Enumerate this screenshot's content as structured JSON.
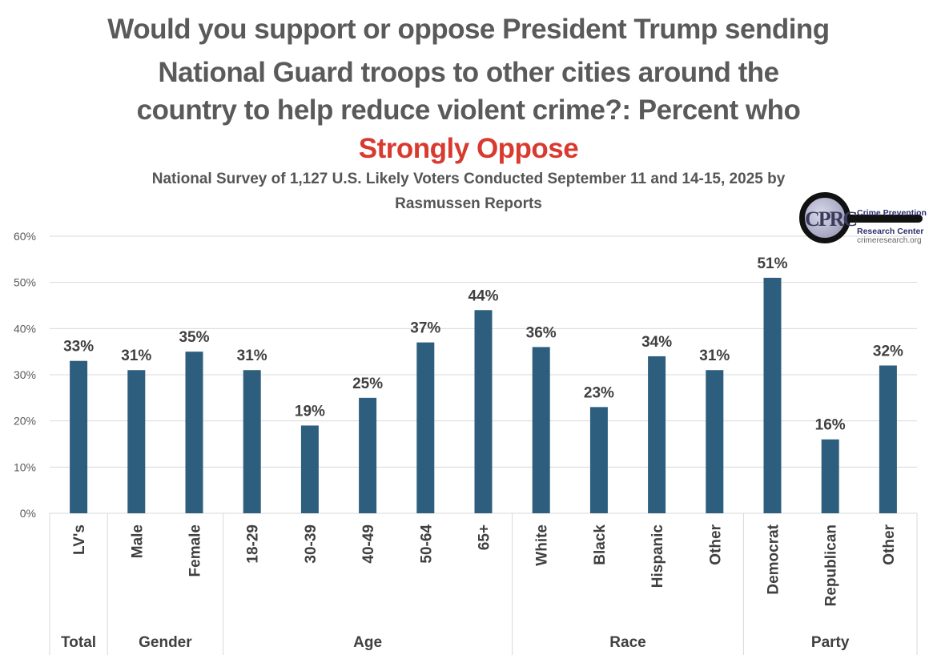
{
  "chart_data": {
    "type": "bar",
    "title_lines": [
      "Would you support or oppose President Trump sending",
      "National Guard troops to other cities around the",
      "country to help reduce violent crime?: Percent who"
    ],
    "title_highlight": "Strongly Oppose",
    "subtitle_lines": [
      "National Survey of 1,127 U.S. Likely Voters Conducted September 11 and 14-15, 2025 by",
      "Rasmussen Reports"
    ],
    "categories": [
      "LV's",
      "Male",
      "Female",
      "18-29",
      "30-39",
      "40-49",
      "50-64",
      "65+",
      "White",
      "Black",
      "Hispanic",
      "Other",
      "Democrat",
      "Republican",
      "Other"
    ],
    "values": [
      33,
      31,
      35,
      31,
      19,
      25,
      37,
      44,
      36,
      23,
      34,
      31,
      51,
      16,
      32
    ],
    "data_labels": [
      "33%",
      "31%",
      "35%",
      "31%",
      "19%",
      "25%",
      "37%",
      "44%",
      "36%",
      "23%",
      "34%",
      "31%",
      "51%",
      "16%",
      "32%"
    ],
    "groups": [
      {
        "name": "Total",
        "count": 1
      },
      {
        "name": "Gender",
        "count": 2
      },
      {
        "name": "Age",
        "count": 5
      },
      {
        "name": "Race",
        "count": 4
      },
      {
        "name": "Party",
        "count": 3
      }
    ],
    "y_ticks": [
      "0%",
      "10%",
      "20%",
      "30%",
      "40%",
      "50%",
      "60%"
    ],
    "ylim": [
      0,
      60
    ],
    "xlabel": "",
    "ylabel": "",
    "grid": true,
    "legend": "none",
    "bar_color": "#2e5e7e",
    "highlight_color": "#d83a2f"
  },
  "logo": {
    "initials": "CPRC",
    "line1": "Crime Prevention",
    "line2": "Research Center",
    "line3": "crimeresearch.org"
  }
}
